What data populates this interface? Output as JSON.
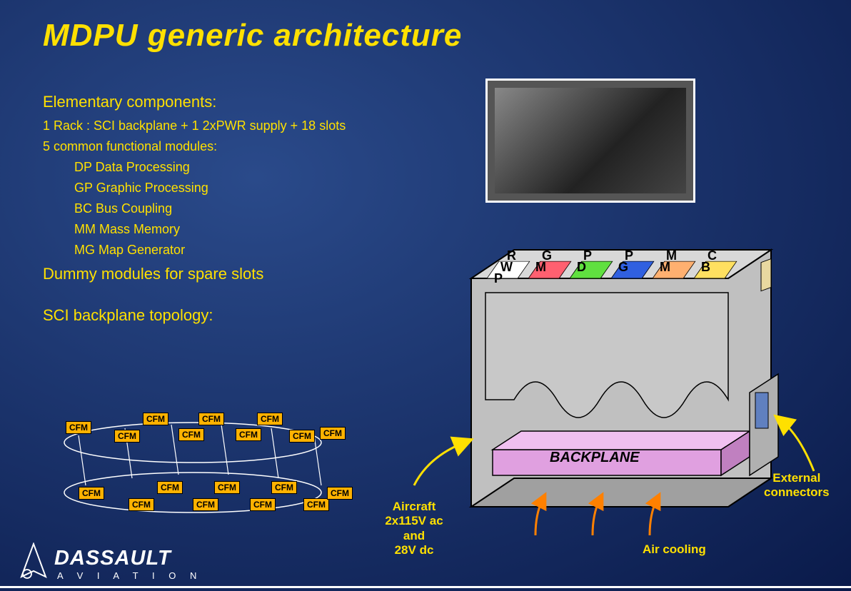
{
  "title": "MDPU generic architecture",
  "text": {
    "elem_heading": "Elementary components:",
    "rack_line": "1 Rack : SCI backplane + 1 2xPWR supply + 18 slots",
    "modules_heading": "5 common functional modules:",
    "modules": {
      "dp": "DP Data Processing",
      "gp": "GP Graphic Processing",
      "bc": "BC Bus Coupling",
      "mm": "MM Mass Memory",
      "mg": "MG Map Generator"
    },
    "dummy": "Dummy modules for spare slots",
    "sci_heading": "SCI backplane topology:"
  },
  "cfm_label": "CFM",
  "rack": {
    "cards": [
      {
        "label1": "P",
        "label2": "W",
        "label3": "R",
        "color": "#ffffff"
      },
      {
        "label1": "M",
        "label2": "G",
        "label3": "",
        "color": "#ff6070"
      },
      {
        "label1": "D",
        "label2": "P",
        "label3": "",
        "color": "#60e040"
      },
      {
        "label1": "G",
        "label2": "P",
        "label3": "",
        "color": "#3060e0"
      },
      {
        "label1": "M",
        "label2": "M",
        "label3": "",
        "color": "#ffb070"
      },
      {
        "label1": "B",
        "label2": "C",
        "label3": "",
        "color": "#ffe060"
      }
    ],
    "backplane_label": "BACKPLANE",
    "backplane_color": "#e0a0e0",
    "body_color": "#c0c0c0"
  },
  "annotations": {
    "power": "Aircraft\n2x115V ac\nand\n28V dc",
    "air": "Air cooling",
    "ext": "External\nconnectors"
  },
  "logo": {
    "brand": "DASSAULT",
    "sub": "A V I A T I O N"
  },
  "colors": {
    "accent": "#ffe000",
    "cfm_bg": "#ffb200"
  }
}
